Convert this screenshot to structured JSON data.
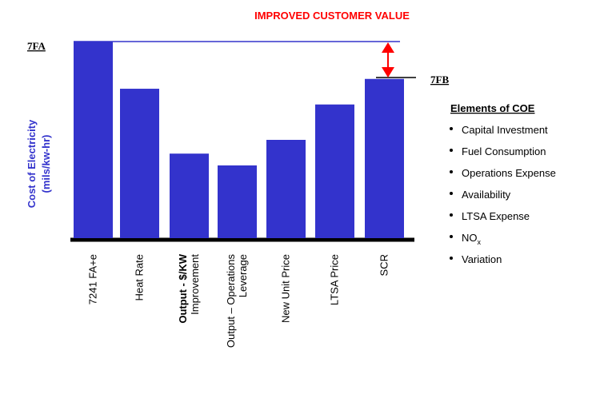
{
  "chart_data": {
    "type": "bar",
    "title": "IMPROVED CUSTOMER VALUE",
    "ylabel": "Cost of Electricity",
    "ylabel_units": "(mils/kw-hr)",
    "categories": [
      [
        "7241 FA+e"
      ],
      [
        "Heat Rate"
      ],
      [
        "Output  - $/KW",
        "Improvement"
      ],
      [
        "Output – Operations",
        "Leverage"
      ],
      [
        "New Unit  Price"
      ],
      [
        "LTSA  Price"
      ],
      [
        "SCR"
      ]
    ],
    "values": [
      100,
      76,
      43,
      37,
      50,
      68,
      81
    ],
    "color": "#3333cc",
    "ylim": [
      0,
      100
    ],
    "annotations": {
      "top": "7FA",
      "bottom": "7FB"
    },
    "elements": {
      "title": "Elements of COE",
      "items": [
        "Capital Investment",
        "Fuel Consumption",
        "Operations Expense",
        "Availability",
        "LTSA Expense",
        {
          "text": "NO",
          "subscript": "x"
        },
        "Variation"
      ]
    }
  }
}
